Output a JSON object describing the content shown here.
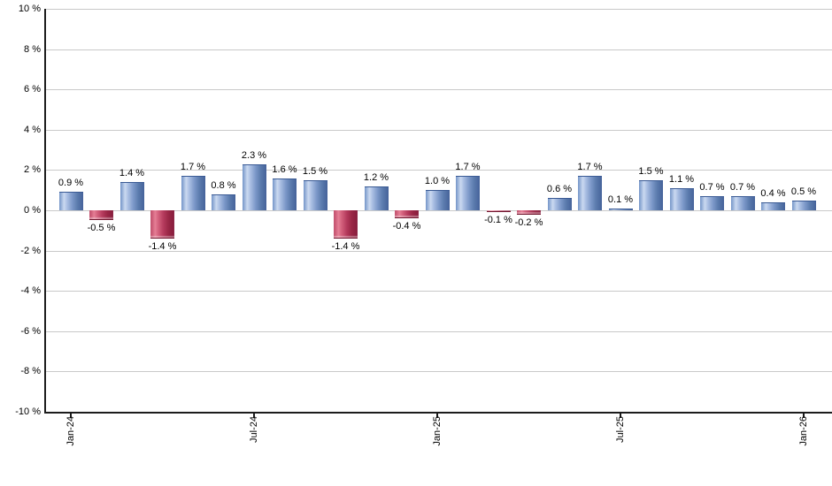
{
  "chart_data": {
    "type": "bar",
    "unit": "%",
    "values": [
      0.9,
      -0.5,
      1.4,
      -1.4,
      1.7,
      0.8,
      2.3,
      1.6,
      1.5,
      -1.4,
      1.2,
      -0.4,
      1.0,
      1.7,
      -0.1,
      -0.2,
      0.6,
      1.7,
      0.1,
      1.5,
      1.1,
      0.7,
      0.7,
      0.4,
      0.5
    ],
    "bar_labels": [
      "0.9 %",
      "-0.5 %",
      "1.4 %",
      "-1.4 %",
      "1.7 %",
      "0.8 %",
      "2.3 %",
      "1.6 %",
      "1.5 %",
      "-1.4 %",
      "1.2 %",
      "-0.4 %",
      "1.0 %",
      "1.7 %",
      "-0.1 %",
      "-0.2 %",
      "0.6 %",
      "1.7 %",
      "0.1 %",
      "1.5 %",
      "1.1 %",
      "0.7 %",
      "0.7 %",
      "0.4 %",
      "0.5 %"
    ],
    "x_tick_labels": [
      {
        "index": 0,
        "label": "Jan-24"
      },
      {
        "index": 6,
        "label": "Jul-24"
      },
      {
        "index": 12,
        "label": "Jan-25"
      },
      {
        "index": 18,
        "label": "Jul-25"
      },
      {
        "index": 24,
        "label": "Jan-26"
      }
    ],
    "y_tick_labels": [
      "10 %",
      "8 %",
      "6 %",
      "4 %",
      "2 %",
      "0 %",
      "-2 %",
      "-4 %",
      "-6 %",
      "-8 %",
      "-10 %"
    ],
    "ylim": [
      -10,
      10
    ],
    "y_step": 2,
    "grid": true,
    "legend": "none",
    "title": "",
    "xlabel": "",
    "ylabel": "",
    "colors": {
      "background": "#ffffff",
      "gridline": "#c9c9c9",
      "axis": "#1c1c1c",
      "label_text": "#000000",
      "positive_bar_stops": [
        "#7495c8 0%",
        "#cbd9f0 20%",
        "#a9bee2 33%",
        "#7b97c8 55%",
        "#5c7cae 75%",
        "#45629a 100%"
      ],
      "negative_bar_stops": [
        "#bf4a68 0%",
        "#e57e95 20%",
        "#d3607c 33%",
        "#b43a5c 55%",
        "#9a2746 75%",
        "#871d3d 100%"
      ]
    }
  }
}
